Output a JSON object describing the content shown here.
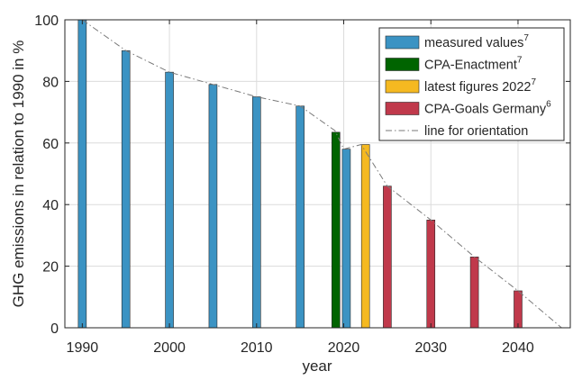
{
  "chart_data": {
    "type": "bar",
    "title": "",
    "xlabel": "year",
    "ylabel": "GHG emissions in relation to 1990 in %",
    "xlim": [
      1988,
      2046
    ],
    "ylim": [
      0,
      100
    ],
    "xticks": [
      1990,
      2000,
      2010,
      2020,
      2030,
      2040
    ],
    "yticks": [
      0,
      20,
      40,
      60,
      80,
      100
    ],
    "grid": true,
    "legend_position": "top-right",
    "series": [
      {
        "name": "measured values",
        "superscript": "7",
        "color": "#3b93c3",
        "points": [
          {
            "x": 1990,
            "y": 100
          },
          {
            "x": 1995,
            "y": 90
          },
          {
            "x": 2000,
            "y": 83
          },
          {
            "x": 2005,
            "y": 79
          },
          {
            "x": 2010,
            "y": 75
          },
          {
            "x": 2015,
            "y": 72
          },
          {
            "x": 2020.3,
            "y": 58
          }
        ]
      },
      {
        "name": "CPA-Enactment",
        "superscript": "7",
        "color": "#006400",
        "points": [
          {
            "x": 2019.1,
            "y": 63.5
          }
        ]
      },
      {
        "name": "latest figures 2022",
        "superscript": "7",
        "color": "#f5b921",
        "points": [
          {
            "x": 2022.5,
            "y": 59.5
          }
        ]
      },
      {
        "name": "CPA-Goals Germany",
        "superscript": "6",
        "color": "#c0394b",
        "points": [
          {
            "x": 2025,
            "y": 46
          },
          {
            "x": 2030,
            "y": 35
          },
          {
            "x": 2035,
            "y": 23
          },
          {
            "x": 2040,
            "y": 12
          }
        ]
      }
    ],
    "orientation_line": {
      "name": "line for orientation",
      "color": "#7a7a7a",
      "points": [
        {
          "x": 1990,
          "y": 100
        },
        {
          "x": 1995,
          "y": 90
        },
        {
          "x": 2000,
          "y": 83
        },
        {
          "x": 2005,
          "y": 79
        },
        {
          "x": 2010,
          "y": 75
        },
        {
          "x": 2015,
          "y": 72
        },
        {
          "x": 2019,
          "y": 64
        },
        {
          "x": 2020,
          "y": 58
        },
        {
          "x": 2022,
          "y": 59.5
        },
        {
          "x": 2025,
          "y": 46
        },
        {
          "x": 2030,
          "y": 35
        },
        {
          "x": 2035,
          "y": 23
        },
        {
          "x": 2040,
          "y": 12
        },
        {
          "x": 2045,
          "y": 0
        }
      ]
    }
  }
}
